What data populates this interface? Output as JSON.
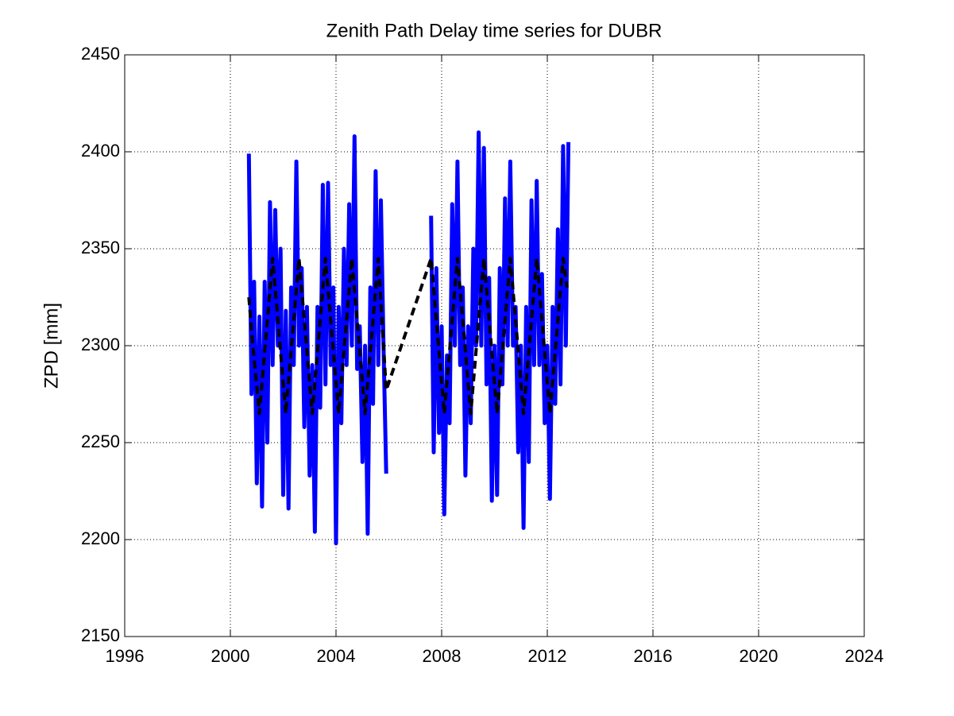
{
  "chart_data": {
    "type": "line",
    "title": "Zenith Path Delay time series for DUBR",
    "y_label": "ZPD [mm]",
    "xlim": [
      1996,
      2024
    ],
    "xticks": [
      1996,
      2000,
      2004,
      2008,
      2012,
      2016,
      2020,
      2024
    ],
    "ylim": [
      2150,
      2450
    ],
    "yticks": [
      2150,
      2200,
      2250,
      2300,
      2350,
      2400,
      2450
    ],
    "grid": true,
    "series": [
      {
        "color": "#0000ff",
        "style": "solid",
        "x": [
          2000.7,
          2000.8,
          2000.9,
          2001.0,
          2001.1,
          2001.2,
          2001.3,
          2001.4,
          2001.5,
          2001.6,
          2001.7,
          2001.8,
          2001.9,
          2002.0,
          2002.1,
          2002.2,
          2002.3,
          2002.4,
          2002.5,
          2002.6,
          2002.7,
          2002.8,
          2002.9,
          2003.0,
          2003.1,
          2003.2,
          2003.3,
          2003.4,
          2003.5,
          2003.6,
          2003.7,
          2003.8,
          2003.9,
          2004.0,
          2004.1,
          2004.2,
          2004.3,
          2004.4,
          2004.5,
          2004.6,
          2004.7,
          2004.8,
          2004.9,
          2005.0,
          2005.1,
          2005.2,
          2005.3,
          2005.4,
          2005.5,
          2005.6,
          2005.7,
          2005.8,
          2005.9,
          2006.5,
          2007.6,
          2007.7,
          2007.8,
          2007.9,
          2008.0,
          2008.1,
          2008.2,
          2008.3,
          2008.4,
          2008.5,
          2008.6,
          2008.7,
          2008.8,
          2008.9,
          2009.0,
          2009.1,
          2009.2,
          2009.3,
          2009.4,
          2009.5,
          2009.6,
          2009.7,
          2009.8,
          2009.9,
          2010.0,
          2010.1,
          2010.2,
          2010.3,
          2010.4,
          2010.5,
          2010.6,
          2010.7,
          2010.8,
          2010.9,
          2011.0,
          2011.1,
          2011.2,
          2011.3,
          2011.4,
          2011.5,
          2011.6,
          2011.7,
          2011.8,
          2011.9,
          2012.0,
          2012.1,
          2012.2,
          2012.3,
          2012.4,
          2012.5,
          2012.6,
          2012.7,
          2012.8
        ],
        "values": [
          2399,
          2275,
          2333,
          2229,
          2315,
          2217,
          2333,
          2250,
          2374,
          2290,
          2370,
          2300,
          2350,
          2223,
          2318,
          2216,
          2330,
          2290,
          2395,
          2300,
          2340,
          2258,
          2320,
          2233,
          2290,
          2204,
          2320,
          2268,
          2383,
          2280,
          2384,
          2290,
          2330,
          2198,
          2320,
          2260,
          2350,
          2290,
          2373,
          2300,
          2408,
          2288,
          2310,
          2240,
          2300,
          2203,
          2330,
          2270,
          2390,
          2290,
          2375,
          2300,
          2234,
          null,
          2367,
          2245,
          2340,
          2255,
          2310,
          2213,
          2295,
          2260,
          2373,
          2300,
          2395,
          2290,
          2330,
          2233,
          2310,
          2260,
          2350,
          2300,
          2410,
          2300,
          2402,
          2280,
          2335,
          2220,
          2300,
          2223,
          2340,
          2280,
          2376,
          2300,
          2395,
          2300,
          2320,
          2245,
          2300,
          2206,
          2320,
          2240,
          2375,
          2290,
          2385,
          2290,
          2337,
          2260,
          2300,
          2221,
          2320,
          2270,
          2360,
          2280,
          2403,
          2300,
          2405
        ]
      },
      {
        "color": "#000000",
        "style": "dashed",
        "x": [
          2000.7,
          2000.85,
          2001.1,
          2001.35,
          2001.6,
          2001.85,
          2002.1,
          2002.35,
          2002.6,
          2002.85,
          2003.1,
          2003.35,
          2003.6,
          2003.85,
          2004.1,
          2004.35,
          2004.6,
          2004.85,
          2005.1,
          2005.35,
          2005.6,
          2005.9,
          2007.6,
          2007.85,
          2008.1,
          2008.35,
          2008.6,
          2008.85,
          2009.1,
          2009.35,
          2009.6,
          2009.85,
          2010.1,
          2010.35,
          2010.6,
          2010.85,
          2011.1,
          2011.35,
          2011.6,
          2011.85,
          2012.1,
          2012.35,
          2012.6,
          2012.75
        ],
        "values": [
          2325,
          2300,
          2265,
          2305,
          2345,
          2305,
          2265,
          2305,
          2345,
          2305,
          2265,
          2305,
          2345,
          2305,
          2265,
          2305,
          2345,
          2305,
          2265,
          2305,
          2345,
          2277,
          2345,
          2305,
          2265,
          2305,
          2345,
          2305,
          2265,
          2305,
          2345,
          2305,
          2265,
          2305,
          2345,
          2305,
          2265,
          2305,
          2345,
          2305,
          2265,
          2305,
          2345,
          2330
        ]
      }
    ]
  }
}
